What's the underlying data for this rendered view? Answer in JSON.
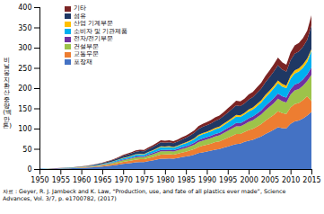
{
  "chart_data": {
    "type": "area",
    "stacked": true,
    "ylabel": "비\n닐\n봉\n지\n환\n산\n중\n량\n(백\n만\n톤)",
    "caption": "자료 : Geyer, R. J. Jambeck and K. Law, “Production, use, and fate of all plastics ever made”, Science\nAdvances, Vol. 3/7, p. e1700782, (2017)",
    "legend": "upper left",
    "x": [
      1950,
      1951,
      1952,
      1953,
      1954,
      1955,
      1956,
      1957,
      1958,
      1959,
      1960,
      1961,
      1962,
      1963,
      1964,
      1965,
      1966,
      1967,
      1968,
      1969,
      1970,
      1971,
      1972,
      1973,
      1974,
      1975,
      1976,
      1977,
      1978,
      1979,
      1980,
      1981,
      1982,
      1983,
      1984,
      1985,
      1986,
      1987,
      1988,
      1989,
      1990,
      1991,
      1992,
      1993,
      1994,
      1995,
      1996,
      1997,
      1998,
      1999,
      2000,
      2001,
      2002,
      2003,
      2004,
      2005,
      2006,
      2007,
      2008,
      2009,
      2010,
      2011,
      2012,
      2013,
      2014,
      2015
    ],
    "series": [
      {
        "name": "포장재",
        "color": "#4472c4",
        "values": [
          0.4,
          0.5,
          0.6,
          0.7,
          0.9,
          1.1,
          1.4,
          1.7,
          2.0,
          2.4,
          2.8,
          3.3,
          3.9,
          4.6,
          5.4,
          6.3,
          7.3,
          8.4,
          9.7,
          11.2,
          12.8,
          13.8,
          15.1,
          16.6,
          17.2,
          17.4,
          19.5,
          21.1,
          23.2,
          25.3,
          25.8,
          26.3,
          25.8,
          27.3,
          29.4,
          30.9,
          33.0,
          35.6,
          39.2,
          41.3,
          43.4,
          45.4,
          48.0,
          49.5,
          52.6,
          55.7,
          58.8,
          61.9,
          63.0,
          67.1,
          70.2,
          72.3,
          76.4,
          80.6,
          86.8,
          91.9,
          97.1,
          103.3,
          101.2,
          100.3,
          111.7,
          117.7,
          119.8,
          124.8,
          132.0,
          141.0
        ]
      },
      {
        "name": "교통무문",
        "color": "#ed7d31",
        "values": [
          0.1,
          0.13,
          0.16,
          0.2,
          0.25,
          0.31,
          0.39,
          0.48,
          0.58,
          0.71,
          0.86,
          1.04,
          1.25,
          1.5,
          1.8,
          2.15,
          2.56,
          3.04,
          3.61,
          4.27,
          5.0,
          5.5,
          6.1,
          6.8,
          7.0,
          6.8,
          7.8,
          8.6,
          9.5,
          10.5,
          10.2,
          10.3,
          9.9,
          10.5,
          11.3,
          12.0,
          12.9,
          13.9,
          15.5,
          16.3,
          16.8,
          17.5,
          18.4,
          19.0,
          20.3,
          21.7,
          23.0,
          24.5,
          23.9,
          24.5,
          26.1,
          27.1,
          28.7,
          30.3,
          32.7,
          34.7,
          36.9,
          39.4,
          37.2,
          36.0,
          40.3,
          42.9,
          43.8,
          45.5,
          48.0,
          27.0
        ]
      },
      {
        "name": "건설부문",
        "color": "#9dc34a",
        "values": [
          0.1,
          0.12,
          0.15,
          0.18,
          0.22,
          0.27,
          0.33,
          0.4,
          0.48,
          0.58,
          0.7,
          0.84,
          1.01,
          1.21,
          1.44,
          1.72,
          2.04,
          2.42,
          2.86,
          3.37,
          3.95,
          4.35,
          4.79,
          5.3,
          5.49,
          5.27,
          6.01,
          6.67,
          7.42,
          8.18,
          7.89,
          7.98,
          7.65,
          8.07,
          8.72,
          9.28,
          9.97,
          10.73,
          11.97,
          12.61,
          12.99,
          13.52,
          14.21,
          14.76,
          15.76,
          16.82,
          17.94,
          19.12,
          18.6,
          19.17,
          20.47,
          21.25,
          22.56,
          23.85,
          25.74,
          27.26,
          29.01,
          30.92,
          29.2,
          28.3,
          31.64,
          33.7,
          34.39,
          35.76,
          37.78,
          65.0
        ]
      },
      {
        "name": "전자/전기부문",
        "color": "#7030a0",
        "values": [
          0.04,
          0.05,
          0.06,
          0.07,
          0.09,
          0.11,
          0.14,
          0.17,
          0.2,
          0.25,
          0.3,
          0.36,
          0.43,
          0.52,
          0.62,
          0.74,
          0.88,
          1.04,
          1.23,
          1.45,
          1.7,
          1.87,
          2.06,
          2.28,
          2.36,
          2.27,
          2.59,
          2.87,
          3.19,
          3.52,
          3.4,
          3.44,
          3.3,
          3.48,
          3.76,
          4.0,
          4.3,
          4.63,
          5.17,
          5.44,
          5.6,
          5.83,
          6.13,
          6.37,
          6.8,
          7.25,
          7.74,
          8.25,
          8.02,
          8.26,
          8.81,
          9.14,
          9.7,
          10.24,
          11.05,
          11.7,
          12.46,
          13.27,
          12.53,
          12.13,
          13.58,
          14.46,
          14.76,
          15.34,
          16.2,
          18.0
        ]
      },
      {
        "name": "소비자 및 기관제품",
        "color": "#00b0f0",
        "values": [
          0.08,
          0.1,
          0.12,
          0.15,
          0.18,
          0.22,
          0.27,
          0.33,
          0.39,
          0.48,
          0.57,
          0.69,
          0.82,
          0.99,
          1.18,
          1.41,
          1.67,
          1.98,
          2.35,
          2.77,
          3.25,
          3.58,
          3.94,
          4.36,
          4.51,
          4.34,
          4.95,
          5.49,
          6.1,
          6.72,
          6.49,
          6.56,
          6.29,
          6.63,
          7.16,
          7.62,
          8.19,
          8.81,
          9.83,
          10.35,
          10.66,
          11.1,
          11.66,
          12.12,
          12.94,
          13.8,
          14.72,
          15.69,
          15.26,
          15.71,
          16.76,
          17.4,
          18.47,
          19.5,
          21.05,
          22.29,
          23.73,
          25.28,
          23.87,
          23.12,
          25.86,
          27.54,
          28.1,
          29.23,
          30.86,
          42.0
        ]
      },
      {
        "name": "산업 기계부문",
        "color": "#ffc000",
        "values": [
          0.02,
          0.02,
          0.03,
          0.04,
          0.05,
          0.06,
          0.07,
          0.09,
          0.11,
          0.13,
          0.16,
          0.19,
          0.23,
          0.27,
          0.33,
          0.39,
          0.46,
          0.55,
          0.65,
          0.77,
          0.9,
          0.99,
          1.09,
          1.21,
          1.25,
          1.2,
          1.37,
          1.52,
          1.69,
          1.86,
          1.8,
          1.82,
          1.74,
          1.84,
          1.98,
          2.11,
          2.27,
          2.44,
          2.72,
          2.87,
          2.95,
          3.07,
          3.23,
          3.35,
          3.58,
          3.82,
          4.07,
          4.34,
          4.22,
          4.34,
          4.64,
          4.81,
          5.11,
          5.39,
          5.82,
          6.16,
          6.56,
          6.99,
          6.6,
          6.39,
          7.16,
          7.62,
          7.78,
          8.09,
          8.54,
          3.0
        ]
      },
      {
        "name": "섬유",
        "color": "#1f3864",
        "values": [
          0.1,
          0.13,
          0.16,
          0.2,
          0.25,
          0.31,
          0.39,
          0.47,
          0.57,
          0.7,
          0.84,
          1.01,
          1.21,
          1.46,
          1.74,
          2.08,
          2.47,
          2.93,
          3.48,
          4.11,
          4.82,
          5.31,
          5.84,
          6.47,
          6.7,
          6.44,
          7.34,
          8.14,
          9.04,
          9.96,
          9.63,
          9.73,
          9.33,
          9.83,
          10.62,
          11.3,
          12.14,
          13.06,
          14.57,
          15.34,
          15.8,
          16.44,
          17.28,
          17.96,
          19.17,
          20.45,
          21.8,
          23.24,
          22.61,
          23.28,
          24.84,
          25.77,
          27.37,
          28.92,
          31.22,
          33.08,
          35.23,
          37.56,
          35.47,
          34.37,
          38.44,
          40.95,
          41.78,
          43.45,
          45.89,
          59.0
        ]
      },
      {
        "name": "기타",
        "color": "#7b2424",
        "values": [
          0.06,
          0.07,
          0.09,
          0.11,
          0.13,
          0.16,
          0.2,
          0.24,
          0.29,
          0.35,
          0.42,
          0.51,
          0.61,
          0.73,
          0.87,
          1.04,
          1.24,
          1.47,
          1.74,
          2.06,
          2.42,
          2.66,
          2.93,
          3.25,
          3.36,
          3.23,
          3.69,
          4.09,
          4.55,
          5.01,
          4.84,
          4.89,
          4.69,
          4.94,
          5.34,
          5.68,
          6.11,
          6.57,
          7.33,
          7.72,
          7.95,
          8.27,
          8.7,
          9.04,
          9.65,
          10.29,
          10.98,
          11.71,
          11.39,
          11.73,
          12.51,
          12.98,
          13.79,
          14.57,
          15.72,
          16.64,
          17.72,
          18.89,
          17.83,
          17.27,
          19.32,
          20.59,
          21.01,
          21.83,
          23.05,
          25.0
        ]
      }
    ],
    "xlim": [
      1950,
      2015
    ],
    "xticks": [
      1950,
      1955,
      1960,
      1965,
      1970,
      1975,
      1980,
      1985,
      1990,
      1995,
      2000,
      2005,
      2010,
      2015
    ],
    "ylim": [
      0,
      400
    ],
    "yticks": [
      0,
      50,
      100,
      150,
      200,
      250,
      300,
      350,
      400
    ]
  }
}
